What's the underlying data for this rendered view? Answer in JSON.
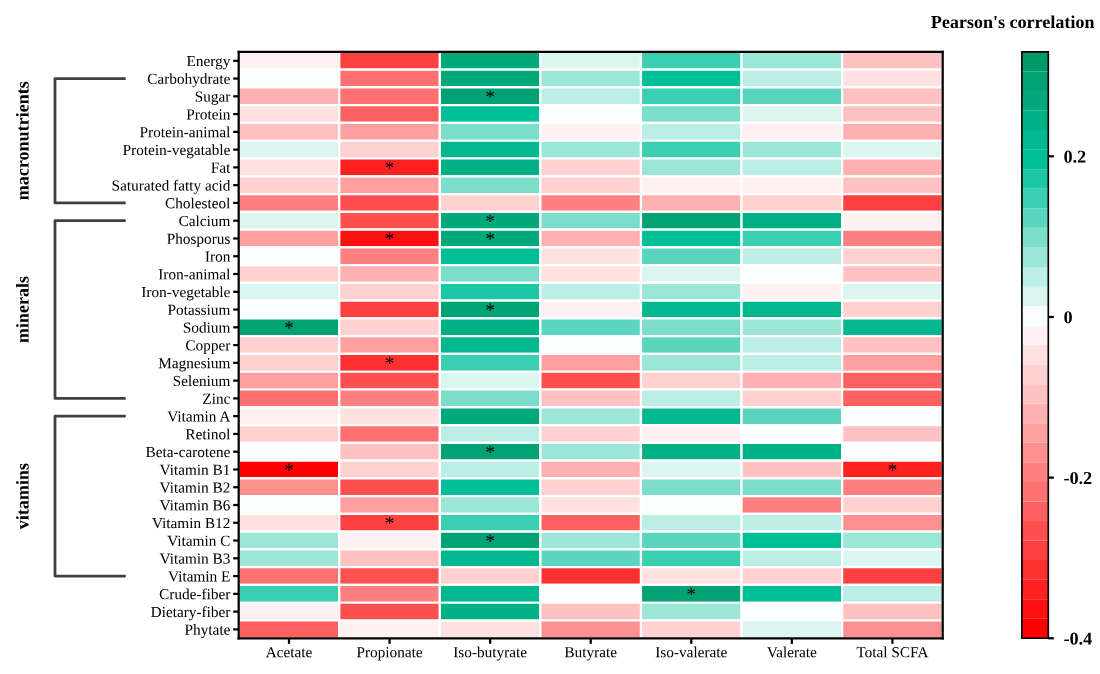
{
  "chart_data": {
    "type": "heatmap",
    "clabel": "Pearson's correlation",
    "categories": [
      "Acetate",
      "Propionate",
      "Iso-butyrate",
      "Butyrate",
      "Iso-valerate",
      "Valerate",
      "Total SCFA"
    ],
    "y_categories": [
      "Energy",
      "Carbohydrate",
      "Sugar",
      "Protein",
      "Protein-animal",
      "Protein-vegatable",
      "Fat",
      "Saturated fatty acid",
      "Cholesteol",
      "Calcium",
      "Phosporus",
      "Iron",
      "Iron-animal",
      "Iron-vegetable",
      "Potassium",
      "Sodium",
      "Copper",
      "Magnesium",
      "Selenium",
      "Zinc",
      "Vitamin A",
      "Retinol",
      "Beta-carotene",
      "Vitamin B1",
      "Vitamin B2",
      "Vitamin B6",
      "Vitamin B12",
      "Vitamin C",
      "Vitamin B3",
      "Vitamin E",
      "Crude-fiber",
      "Dietary-fiber",
      "Phytate"
    ],
    "cells": [
      [
        -0.03,
        -0.28,
        0.28,
        0.02,
        0.15,
        0.07,
        -0.1
      ],
      [
        0.0,
        -0.22,
        0.28,
        0.07,
        0.2,
        0.06,
        -0.05
      ],
      [
        -0.12,
        -0.22,
        0.3,
        0.04,
        0.15,
        0.12,
        -0.1
      ],
      [
        -0.05,
        -0.25,
        0.2,
        0.0,
        0.1,
        0.02,
        -0.1
      ],
      [
        -0.1,
        -0.15,
        0.1,
        -0.03,
        0.04,
        -0.02,
        -0.12
      ],
      [
        0.02,
        -0.06,
        0.22,
        0.07,
        0.15,
        0.07,
        0.03
      ],
      [
        -0.05,
        -0.33,
        0.24,
        -0.07,
        0.08,
        0.04,
        -0.12
      ],
      [
        -0.07,
        -0.15,
        0.1,
        -0.06,
        -0.03,
        -0.02,
        -0.1
      ],
      [
        -0.2,
        -0.27,
        -0.08,
        -0.2,
        -0.12,
        -0.07,
        -0.28
      ],
      [
        0.02,
        -0.27,
        0.28,
        0.1,
        0.3,
        0.25,
        -0.02
      ],
      [
        -0.15,
        -0.37,
        0.28,
        -0.13,
        0.2,
        0.15,
        -0.2
      ],
      [
        0.01,
        -0.2,
        0.2,
        -0.05,
        0.12,
        0.05,
        -0.08
      ],
      [
        -0.07,
        -0.12,
        0.1,
        -0.05,
        0.03,
        0.01,
        -0.1
      ],
      [
        0.03,
        -0.06,
        0.18,
        0.05,
        0.08,
        -0.02,
        0.02
      ],
      [
        0.0,
        -0.28,
        0.3,
        -0.03,
        0.23,
        0.23,
        -0.07
      ],
      [
        0.3,
        -0.06,
        0.24,
        0.13,
        0.09,
        0.07,
        0.22
      ],
      [
        -0.08,
        -0.14,
        0.23,
        0.01,
        0.13,
        0.05,
        -0.1
      ],
      [
        -0.08,
        -0.32,
        0.14,
        -0.15,
        0.08,
        0.04,
        -0.15
      ],
      [
        -0.15,
        -0.27,
        0.03,
        -0.27,
        -0.08,
        -0.13,
        -0.25
      ],
      [
        -0.22,
        -0.2,
        0.1,
        -0.1,
        0.04,
        -0.07,
        -0.25
      ],
      [
        -0.02,
        -0.05,
        0.26,
        0.08,
        0.22,
        0.13,
        0.01
      ],
      [
        -0.07,
        -0.22,
        0.06,
        -0.08,
        -0.02,
        0.01,
        -0.1
      ],
      [
        -0.01,
        -0.09,
        0.3,
        0.08,
        0.25,
        0.25,
        0.01
      ],
      [
        -0.4,
        -0.08,
        0.04,
        -0.13,
        0.03,
        -0.1,
        -0.33
      ],
      [
        -0.18,
        -0.27,
        0.2,
        -0.06,
        0.1,
        0.1,
        -0.2
      ],
      [
        0.01,
        -0.14,
        0.08,
        -0.05,
        0.0,
        -0.2,
        -0.08
      ],
      [
        -0.04,
        -0.3,
        0.15,
        -0.25,
        0.05,
        0.05,
        -0.18
      ],
      [
        0.08,
        -0.02,
        0.3,
        0.08,
        0.13,
        0.2,
        0.07
      ],
      [
        0.08,
        -0.09,
        0.22,
        0.12,
        0.15,
        0.05,
        0.03
      ],
      [
        -0.22,
        -0.27,
        -0.06,
        -0.32,
        -0.04,
        -0.07,
        -0.28
      ],
      [
        0.15,
        -0.2,
        0.22,
        0.0,
        0.3,
        0.2,
        0.06
      ],
      [
        -0.03,
        -0.26,
        0.25,
        -0.1,
        0.08,
        0.0,
        -0.1
      ],
      [
        -0.25,
        -0.03,
        -0.04,
        -0.17,
        -0.06,
        0.02,
        -0.18
      ]
    ],
    "clim": [
      -0.4,
      0.33
    ],
    "cticks": [
      -0.4,
      -0.2,
      0,
      0.2
    ],
    "cell_labels": [
      [
        null,
        null,
        null,
        null,
        null,
        null,
        null
      ],
      [
        null,
        null,
        null,
        null,
        null,
        null,
        null
      ],
      [
        null,
        null,
        "*",
        null,
        null,
        null,
        null
      ],
      [
        null,
        null,
        null,
        null,
        null,
        null,
        null
      ],
      [
        null,
        null,
        null,
        null,
        null,
        null,
        null
      ],
      [
        null,
        null,
        null,
        null,
        null,
        null,
        null
      ],
      [
        null,
        "*",
        null,
        null,
        null,
        null,
        null
      ],
      [
        null,
        null,
        null,
        null,
        null,
        null,
        null
      ],
      [
        null,
        null,
        null,
        null,
        null,
        null,
        null
      ],
      [
        null,
        null,
        "*",
        null,
        null,
        null,
        null
      ],
      [
        null,
        "*",
        "*",
        null,
        null,
        null,
        null
      ],
      [
        null,
        null,
        null,
        null,
        null,
        null,
        null
      ],
      [
        null,
        null,
        null,
        null,
        null,
        null,
        null
      ],
      [
        null,
        null,
        null,
        null,
        null,
        null,
        null
      ],
      [
        null,
        null,
        "*",
        null,
        null,
        null,
        null
      ],
      [
        "*",
        null,
        null,
        null,
        null,
        null,
        null
      ],
      [
        null,
        null,
        null,
        null,
        null,
        null,
        null
      ],
      [
        null,
        "*",
        null,
        null,
        null,
        null,
        null
      ],
      [
        null,
        null,
        null,
        null,
        null,
        null,
        null
      ],
      [
        null,
        null,
        null,
        null,
        null,
        null,
        null
      ],
      [
        null,
        null,
        null,
        null,
        null,
        null,
        null
      ],
      [
        null,
        null,
        null,
        null,
        null,
        null,
        null
      ],
      [
        null,
        null,
        "*",
        null,
        null,
        null,
        null
      ],
      [
        "*",
        null,
        null,
        null,
        null,
        null,
        "*"
      ],
      [
        null,
        null,
        null,
        null,
        null,
        null,
        null
      ],
      [
        null,
        null,
        null,
        null,
        null,
        null,
        null
      ],
      [
        null,
        "*",
        null,
        null,
        null,
        null,
        null
      ],
      [
        null,
        null,
        "*",
        null,
        null,
        null,
        null
      ],
      [
        null,
        null,
        null,
        null,
        null,
        null,
        null
      ],
      [
        null,
        null,
        null,
        null,
        null,
        null,
        null
      ],
      [
        null,
        null,
        null,
        null,
        "*",
        null,
        null
      ],
      [
        null,
        null,
        null,
        null,
        null,
        null,
        null
      ],
      [
        null,
        null,
        null,
        null,
        null,
        null,
        null
      ]
    ],
    "annotations": [
      "macronutrients",
      "minerals",
      "vitamins"
    ]
  }
}
